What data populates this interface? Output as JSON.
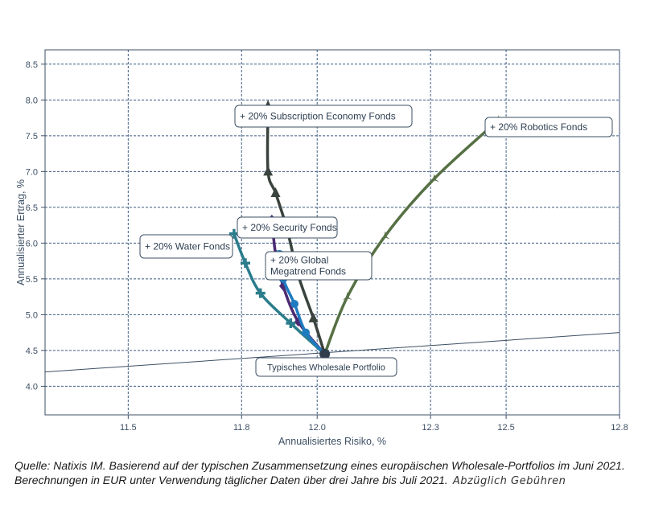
{
  "chart_data": {
    "type": "line",
    "xlabel": "Annualisiertes Risiko, %",
    "ylabel": "Annualisierter Ertrag, %",
    "xlim": [
      11.28,
      12.8
    ],
    "ylim": [
      3.6,
      8.7
    ],
    "xticks": [
      "11.5",
      "11.8",
      "12.0",
      "12.3",
      "12.5",
      "12.8"
    ],
    "yticks": [
      "4.0",
      "4.5",
      "5.0",
      "5.5",
      "6.0",
      "6.5",
      "7.0",
      "7.5",
      "8.0",
      "8.5"
    ],
    "grid": true,
    "capital_market_line": {
      "x": [
        11.28,
        12.8
      ],
      "y": [
        4.2,
        4.75
      ]
    },
    "base_point": {
      "name": "Typisches Wholesale Portfolio",
      "x": 12.02,
      "y": 4.45
    },
    "series": [
      {
        "name": "+ 20% Subscription Economy Fonds",
        "color": "#3a433d",
        "marker": "triangle",
        "x": [
          12.02,
          11.99,
          11.95,
          11.92,
          11.89,
          11.87,
          11.87
        ],
        "y": [
          4.45,
          4.95,
          5.55,
          6.2,
          6.7,
          7.0,
          7.9
        ]
      },
      {
        "name": "+ 20% Robotics Fonds",
        "color": "#567044",
        "marker": "tri-star",
        "x": [
          12.02,
          12.08,
          12.18,
          12.31,
          12.48
        ],
        "y": [
          4.45,
          5.25,
          6.1,
          6.9,
          7.72
        ]
      },
      {
        "name": "+ 20% Security Fonds",
        "color": "#4b2a72",
        "marker": "diamond",
        "x": [
          12.02,
          11.95,
          11.91,
          11.89,
          11.88
        ],
        "y": [
          4.45,
          4.9,
          5.4,
          5.85,
          6.33
        ]
      },
      {
        "name": "+ 20% Global Megatrend Fonds",
        "color": "#1f7bbf",
        "marker": "circle",
        "x": [
          12.02,
          11.97,
          11.94,
          11.91,
          11.9
        ],
        "y": [
          4.45,
          4.75,
          5.15,
          5.5,
          5.83
        ]
      },
      {
        "name": "+ 20% Water Fonds",
        "color": "#2b7d8c",
        "marker": "plus",
        "x": [
          12.02,
          11.93,
          11.85,
          11.81,
          11.78
        ],
        "y": [
          4.45,
          4.88,
          5.3,
          5.72,
          6.13
        ]
      }
    ],
    "annotations": [
      {
        "text": "+ 20% Subscription Economy Fonds",
        "lines": [
          "+ 20% Subscription Economy Fonds"
        ]
      },
      {
        "text": "+ 20% Robotics Fonds",
        "lines": [
          "+ 20% Robotics Fonds"
        ]
      },
      {
        "text": "+ 20% Security Fonds",
        "lines": [
          "+ 20% Security Fonds"
        ]
      },
      {
        "text": "+ 20% Water Fonds",
        "lines": [
          "+ 20% Water Fonds"
        ]
      },
      {
        "text": "+ 20% Global Megatrend Fonds",
        "lines": [
          "+ 20% Global",
          "Megatrend Fonds"
        ]
      },
      {
        "text": "Typisches Wholesale Portfolio",
        "lines": [
          "Typisches Wholesale Portfolio"
        ]
      }
    ]
  },
  "source": {
    "line1": "Quelle: Natixis IM. Basierend auf der typischen Zusammensetzung eines europäischen Wholesale-Portfolios im Juni 2021.",
    "line2": "Berechnungen in EUR unter Verwendung  täglicher Daten über drei Jahre bis Juli 2021.",
    "after_costs": "Abzüglich Gebühren"
  }
}
